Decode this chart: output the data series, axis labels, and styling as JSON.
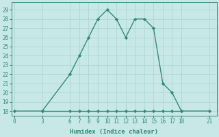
{
  "xlabel": "Humidex (Indice chaleur)",
  "x_values": [
    0,
    3,
    6,
    7,
    8,
    9,
    10,
    11,
    12,
    13,
    14,
    15,
    16,
    17,
    18,
    21
  ],
  "y_values": [
    18,
    18,
    22,
    24,
    26,
    28,
    29,
    28,
    26,
    28,
    28,
    27,
    21,
    20,
    18,
    18
  ],
  "x_flat": [
    3,
    6,
    7,
    8,
    9,
    10,
    11,
    12,
    13,
    14,
    15,
    16,
    17,
    18
  ],
  "y_flat": [
    18,
    18,
    18,
    18,
    18,
    18,
    18,
    18,
    18,
    18,
    18,
    18,
    18,
    18
  ],
  "x_ticks": [
    0,
    3,
    6,
    7,
    8,
    9,
    10,
    11,
    12,
    13,
    14,
    15,
    16,
    17,
    18,
    21
  ],
  "y_ticks": [
    18,
    19,
    20,
    21,
    22,
    23,
    24,
    25,
    26,
    27,
    28,
    29
  ],
  "ylim": [
    17.5,
    29.8
  ],
  "xlim": [
    -0.3,
    21.8
  ],
  "line_color": "#2e8b74",
  "bg_color": "#c8e8e8",
  "grid_color": "#b0d8d8",
  "marker": "D",
  "marker_size": 2.2,
  "line_width": 1.0,
  "tick_fontsize": 5.5,
  "xlabel_fontsize": 6.5
}
